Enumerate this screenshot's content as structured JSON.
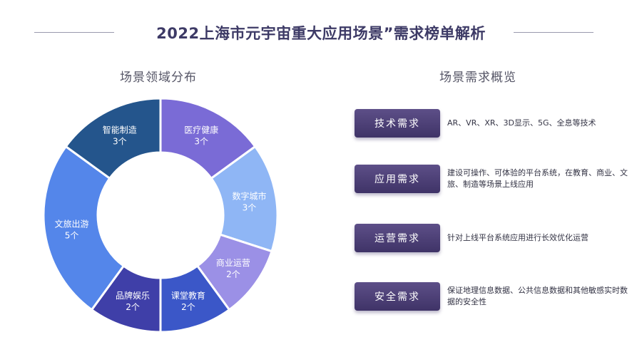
{
  "page": {
    "title": "2022上海市元宇宙重大应用场景”需求榜单解析"
  },
  "chart_data": {
    "type": "pie",
    "title": "场景领域分布",
    "categories": [
      "医疗健康",
      "数字城市",
      "商业运营",
      "课堂教育",
      "品牌娱乐",
      "文旅出游",
      "智能制造"
    ],
    "values": [
      3,
      3,
      2,
      2,
      2,
      5,
      3
    ],
    "value_labels": [
      "3个",
      "3个",
      "2个",
      "2个",
      "2个",
      "5个",
      "3个"
    ],
    "colors": [
      "#7a6bd6",
      "#8fb6f5",
      "#9b90e6",
      "#3b57c8",
      "#3f3fa8",
      "#5486ea",
      "#24558c"
    ]
  },
  "overview": {
    "title": "场景需求概览",
    "items": [
      {
        "label": "技术需求",
        "description": "AR、VR、XR、3D显示、5G、全息等技术"
      },
      {
        "label": "应用需求",
        "description": "建设可操作、可体验的平台系统，在教育、商业、文旅、制造等场景上线应用"
      },
      {
        "label": "运营需求",
        "description": "针对上线平台系统应用进行长效优化运营"
      },
      {
        "label": "安全需求",
        "description": "保证地理信息数据、公共信息数据和其他敏感实时数据的安全性"
      }
    ]
  }
}
